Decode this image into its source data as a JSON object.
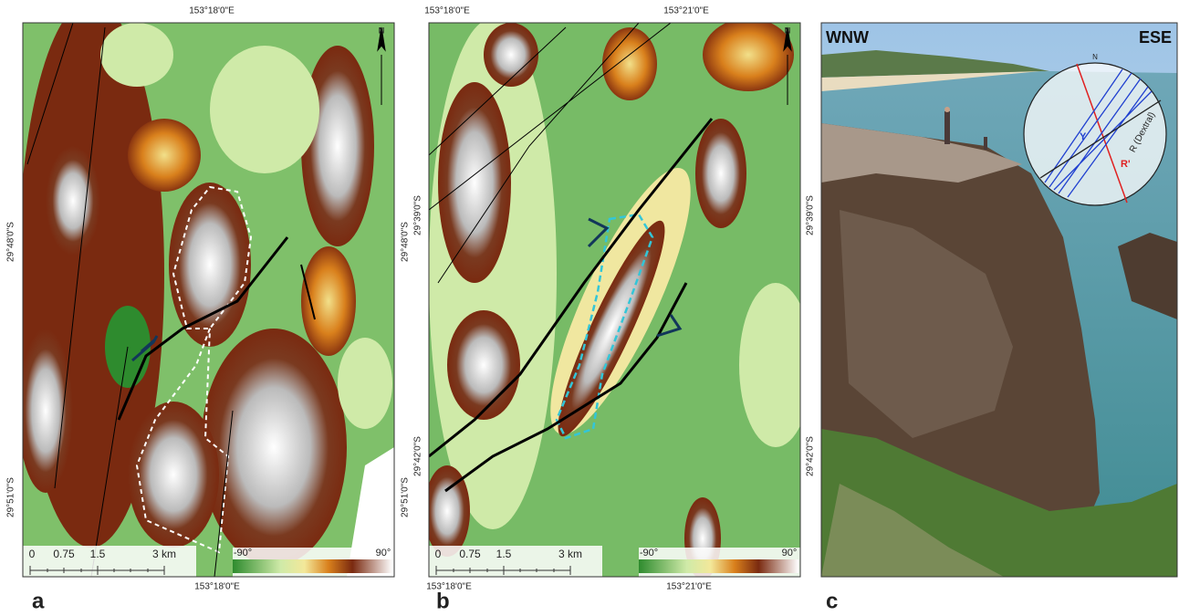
{
  "panels": [
    {
      "letter": "a",
      "north": "N",
      "top_labels": [
        "153°18'0\"E"
      ],
      "bottom_labels": [
        "153°18'0\"E"
      ],
      "left_labels": [
        "29°48'0\"S",
        "29°51'0\"S"
      ],
      "right_labels": [
        "29°48'0\"S",
        "29°51'0\"S"
      ],
      "scale_labels": [
        "0",
        "0.75",
        "1.5",
        "3 km"
      ],
      "legend": [
        "-90°",
        "90°"
      ]
    },
    {
      "letter": "b",
      "north": "N",
      "top_labels": [
        "153°18'0\"E",
        "153°21'0\"E"
      ],
      "bottom_labels": [
        "153°18'0\"E",
        "153°21'0\"E"
      ],
      "left_labels": [
        "29°39'0\"S",
        "29°42'0\"S"
      ],
      "right_labels": [
        "29°39'0\"S",
        "29°42'0\"S"
      ],
      "scale_labels": [
        "0",
        "0.75",
        "1.5",
        "3 km"
      ],
      "legend": [
        "-90°",
        "90°"
      ]
    },
    {
      "letter": "c",
      "left_title": "WNW",
      "right_title": "ESE",
      "stereonet": {
        "north": "N",
        "labels": [
          "Y",
          "R (Dextral)",
          "R'"
        ]
      }
    }
  ]
}
